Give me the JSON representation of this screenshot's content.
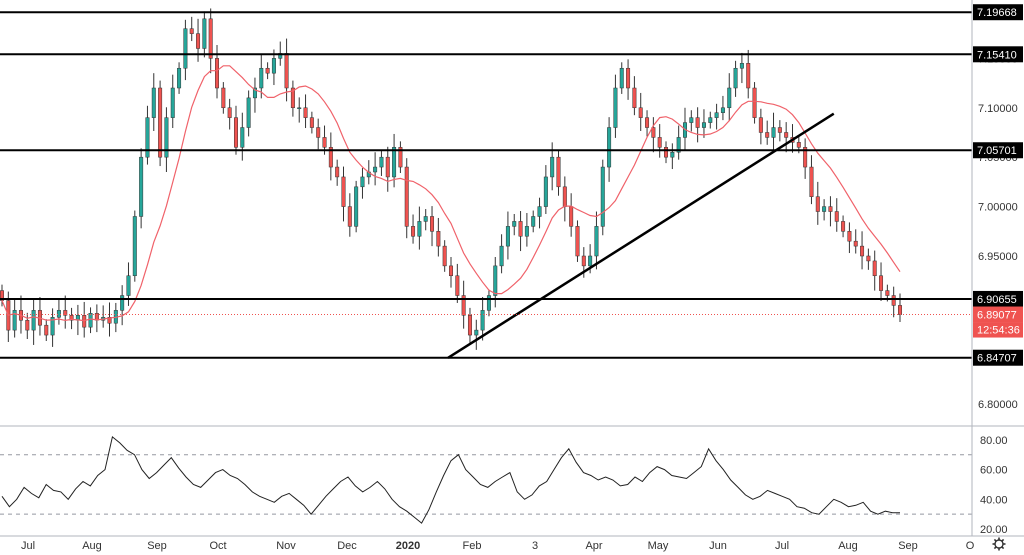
{
  "chart_data": {
    "type": "candlestick",
    "price_axis": {
      "range": [
        6.78,
        7.205
      ],
      "ticks": [
        "6.80000",
        "6.85000",
        "6.90000",
        "6.95000",
        "7.00000",
        "7.05000",
        "7.10000",
        "7.15000"
      ]
    },
    "horizontal_levels": [
      {
        "value": 7.19668,
        "label": "7.19668"
      },
      {
        "value": 7.1541,
        "label": "7.15410"
      },
      {
        "value": 7.05701,
        "label": "7.05701"
      },
      {
        "value": 6.90655,
        "label": "6.90655"
      },
      {
        "value": 6.84707,
        "label": "6.84707"
      }
    ],
    "trendline": {
      "from": {
        "date": "2020-01-16",
        "price": 6.847
      },
      "to": {
        "date": "2020-08-01",
        "price": 7.094
      }
    },
    "current_price": {
      "value": 6.89077,
      "label": "6.89077",
      "timer": "12:54:36"
    },
    "time_axis": [
      "Jul",
      "Aug",
      "Sep",
      "Oct",
      "Nov",
      "Dec",
      "2020",
      "Feb",
      "3",
      "Apr",
      "May",
      "Jun",
      "Jul",
      "Aug",
      "Sep",
      "O"
    ],
    "closes": [
      6.905,
      6.875,
      6.895,
      6.885,
      6.875,
      6.895,
      6.88,
      6.87,
      6.888,
      6.895,
      6.89,
      6.885,
      6.89,
      6.878,
      6.892,
      6.885,
      6.888,
      6.882,
      6.895,
      6.91,
      6.93,
      6.99,
      7.05,
      7.09,
      7.12,
      7.05,
      7.09,
      7.12,
      7.14,
      7.18,
      7.175,
      7.16,
      7.19,
      7.15,
      7.12,
      7.1,
      7.09,
      7.06,
      7.08,
      7.11,
      7.12,
      7.14,
      7.135,
      7.15,
      7.155,
      7.12,
      7.1,
      7.1,
      7.09,
      7.08,
      7.07,
      7.06,
      7.04,
      7.03,
      7.0,
      6.98,
      7.02,
      7.03,
      7.035,
      7.04,
      7.05,
      7.03,
      7.06,
      7.04,
      6.98,
      6.97,
      6.985,
      6.99,
      6.975,
      6.96,
      6.94,
      6.93,
      6.91,
      6.89,
      6.87,
      6.875,
      6.895,
      6.91,
      6.94,
      6.96,
      6.98,
      6.985,
      6.97,
      6.98,
      6.99,
      7.0,
      7.03,
      7.05,
      7.02,
      7.0,
      6.98,
      6.95,
      6.94,
      6.95,
      6.98,
      7.04,
      7.08,
      7.12,
      7.14,
      7.12,
      7.1,
      7.09,
      7.08,
      7.07,
      7.06,
      7.05,
      7.055,
      7.07,
      7.085,
      7.09,
      7.08,
      7.085,
      7.09,
      7.095,
      7.1,
      7.12,
      7.14,
      7.145,
      7.12,
      7.09,
      7.075,
      7.07,
      7.08,
      7.075,
      7.07,
      7.065,
      7.06,
      7.04,
      7.01,
      6.995,
      7.0,
      6.995,
      6.985,
      6.975,
      6.965,
      6.96,
      6.95,
      6.945,
      6.93,
      6.915,
      6.91,
      6.9,
      6.89077
    ],
    "moving_average": {
      "color": "#f0626a"
    },
    "oscillator": {
      "range": [
        18,
        88
      ],
      "ticks": [
        "20.00",
        "40.00",
        "60.00",
        "80.00"
      ],
      "bands": [
        30,
        70
      ],
      "values": [
        42,
        35,
        40,
        48,
        44,
        41,
        50,
        46,
        45,
        40,
        47,
        52,
        49,
        56,
        60,
        82,
        78,
        73,
        70,
        60,
        54,
        58,
        63,
        68,
        61,
        55,
        50,
        48,
        53,
        58,
        60,
        56,
        54,
        50,
        45,
        42,
        40,
        38,
        42,
        44,
        40,
        36,
        30,
        36,
        42,
        47,
        52,
        55,
        49,
        45,
        48,
        52,
        47,
        40,
        35,
        32,
        28,
        24,
        33,
        45,
        56,
        66,
        70,
        60,
        55,
        50,
        48,
        52,
        55,
        58,
        45,
        40,
        43,
        49,
        52,
        60,
        68,
        74,
        65,
        58,
        56,
        53,
        55,
        53,
        49,
        50,
        55,
        52,
        58,
        62,
        60,
        56,
        55,
        54,
        58,
        62,
        74,
        66,
        60,
        53,
        48,
        43,
        40,
        42,
        46,
        44,
        42,
        40,
        35,
        34,
        31,
        30,
        35,
        40,
        38,
        35,
        36,
        38,
        32,
        30,
        32,
        31,
        31
      ]
    }
  }
}
